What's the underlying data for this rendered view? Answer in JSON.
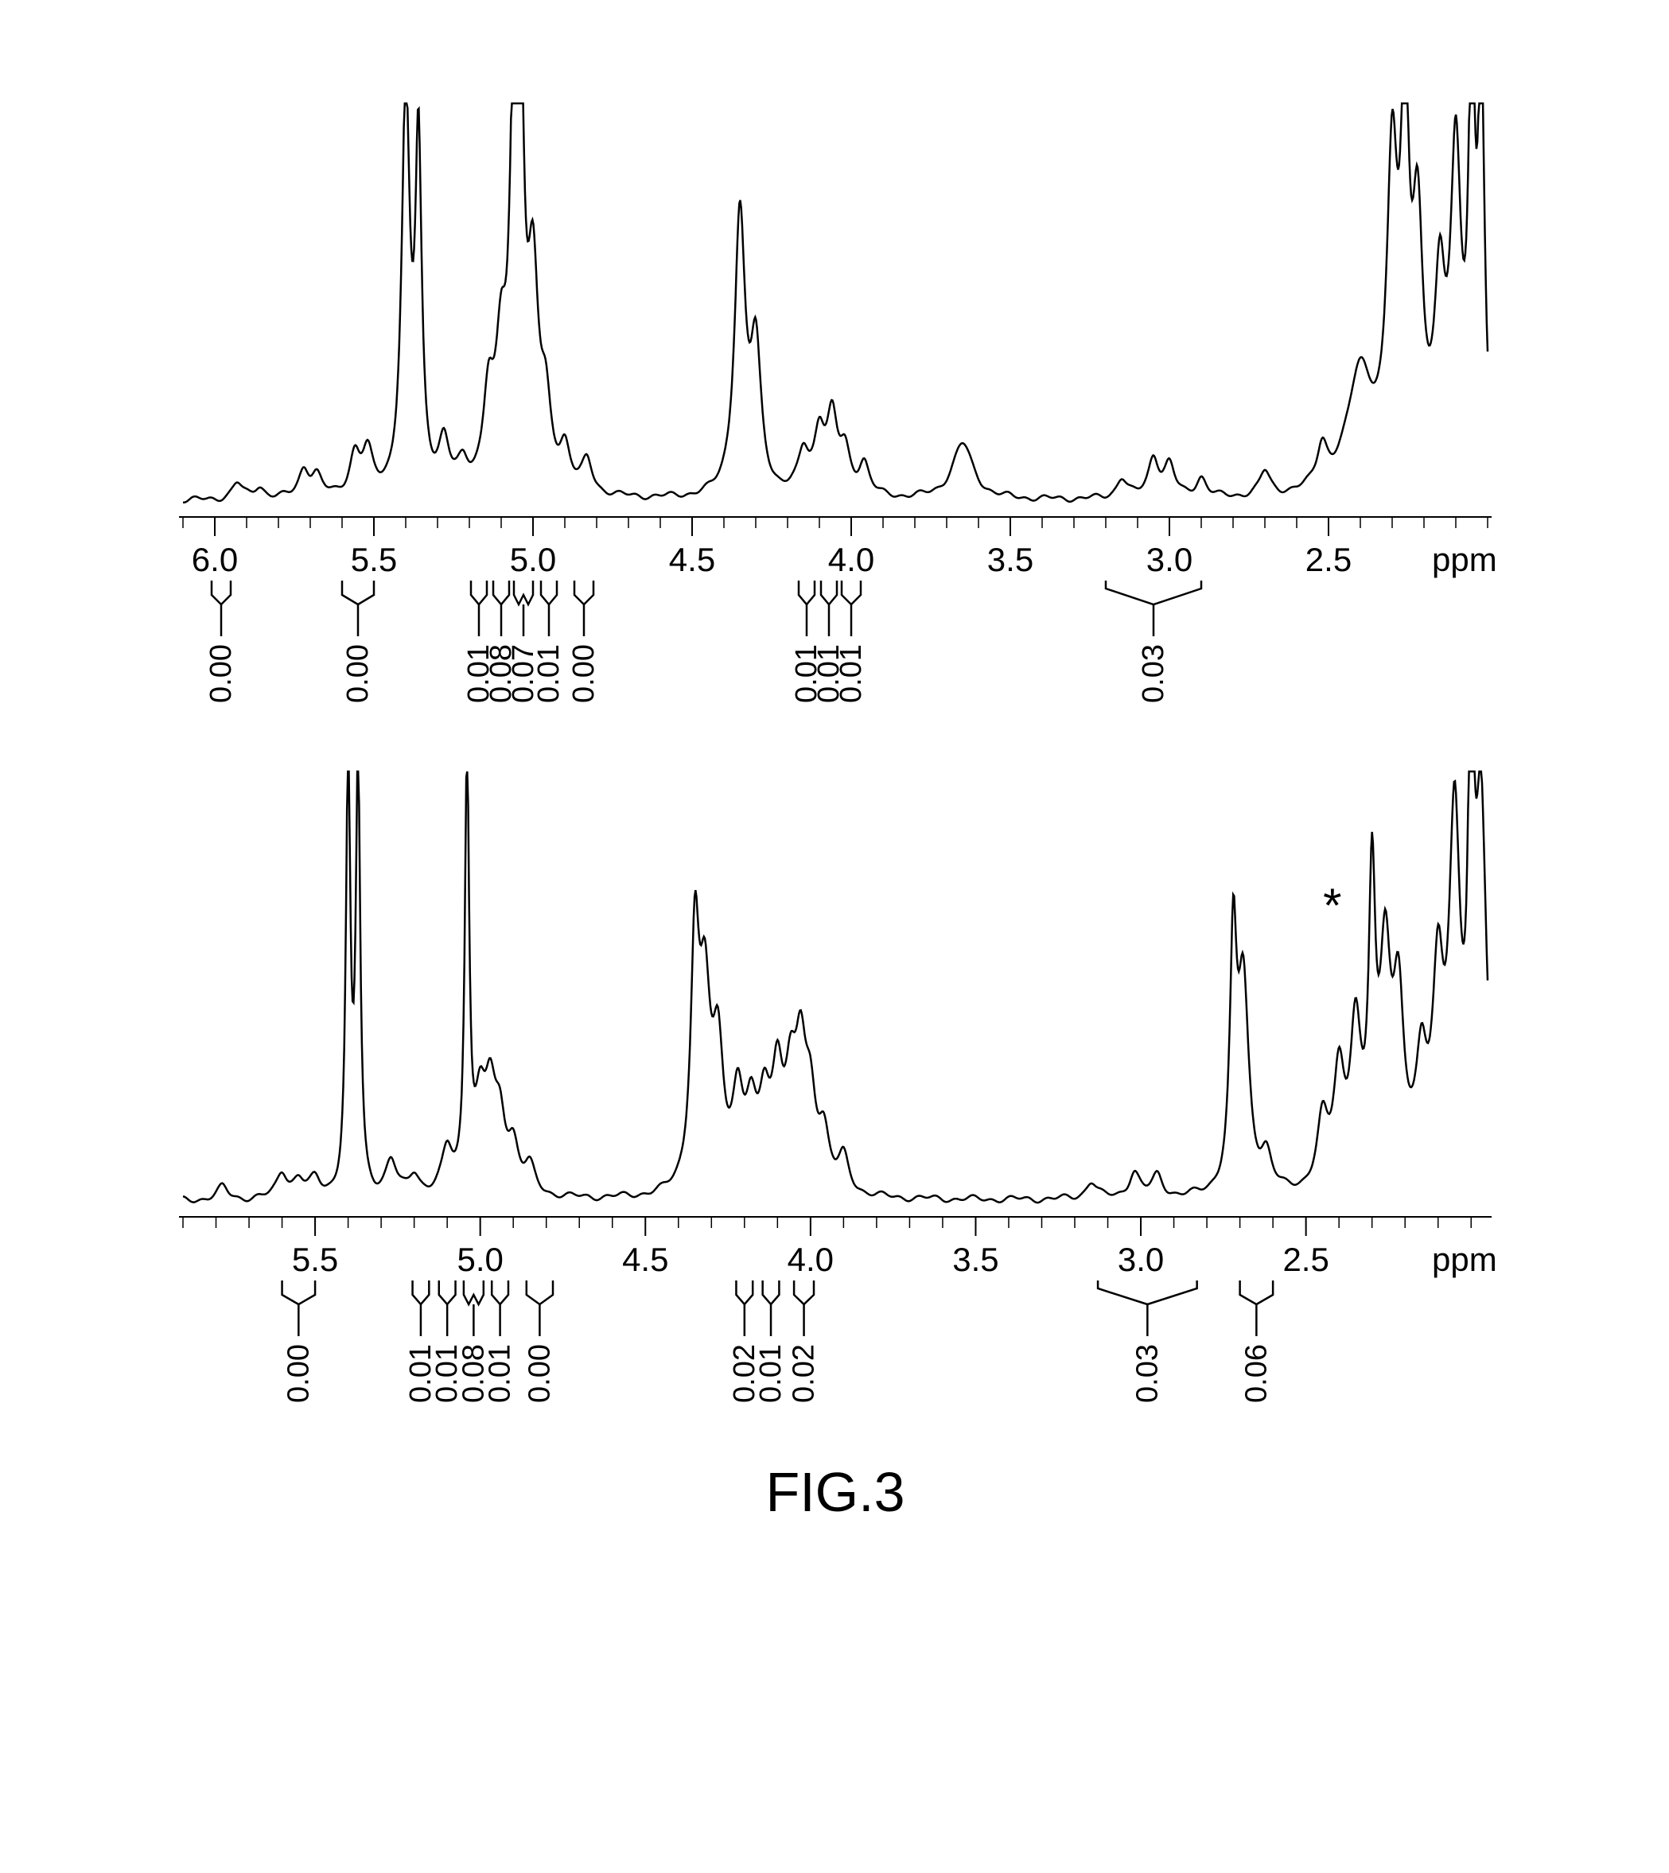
{
  "figure_label": "FIG.3",
  "background_color": "#ffffff",
  "line_color": "#000000",
  "axis_fontsize": 42,
  "integral_fontsize": 38,
  "caption_fontsize": 70,
  "panel1": {
    "xlim": [
      6.1,
      2.0
    ],
    "spectrum_height": 500,
    "axis_ticks_major": [
      6.0,
      5.5,
      5.0,
      4.5,
      4.0,
      3.5,
      3.0,
      2.5
    ],
    "axis_labels": [
      "6.0",
      "5.5",
      "5.0",
      "4.5",
      "4.0",
      "3.5",
      "3.0",
      "2.5"
    ],
    "ppm_label": "ppm",
    "minor_tick_interval": 0.1,
    "peaks": [
      {
        "x": 5.93,
        "h": 0.04
      },
      {
        "x": 5.86,
        "h": 0.03
      },
      {
        "x": 5.72,
        "h": 0.07
      },
      {
        "x": 5.68,
        "h": 0.05
      },
      {
        "x": 5.56,
        "h": 0.1
      },
      {
        "x": 5.52,
        "h": 0.1
      },
      {
        "x": 5.4,
        "h": 1.0,
        "w": 0.015
      },
      {
        "x": 5.36,
        "h": 0.85,
        "w": 0.012
      },
      {
        "x": 5.28,
        "h": 0.12
      },
      {
        "x": 5.22,
        "h": 0.06
      },
      {
        "x": 5.14,
        "h": 0.22
      },
      {
        "x": 5.1,
        "h": 0.3
      },
      {
        "x": 5.06,
        "h": 0.9,
        "w": 0.015
      },
      {
        "x": 5.04,
        "h": 1.0,
        "w": 0.012
      },
      {
        "x": 5.0,
        "h": 0.5
      },
      {
        "x": 4.96,
        "h": 0.18
      },
      {
        "x": 4.9,
        "h": 0.1
      },
      {
        "x": 4.83,
        "h": 0.08
      },
      {
        "x": 4.35,
        "h": 0.7,
        "w": 0.02
      },
      {
        "x": 4.3,
        "h": 0.35
      },
      {
        "x": 4.15,
        "h": 0.1
      },
      {
        "x": 4.1,
        "h": 0.15
      },
      {
        "x": 4.06,
        "h": 0.18
      },
      {
        "x": 4.02,
        "h": 0.1
      },
      {
        "x": 3.96,
        "h": 0.08
      },
      {
        "x": 3.65,
        "h": 0.14,
        "w": 0.04
      },
      {
        "x": 3.15,
        "h": 0.05
      },
      {
        "x": 3.05,
        "h": 0.1
      },
      {
        "x": 3.0,
        "h": 0.08
      },
      {
        "x": 2.9,
        "h": 0.05
      },
      {
        "x": 2.7,
        "h": 0.06
      },
      {
        "x": 2.52,
        "h": 0.1
      },
      {
        "x": 2.4,
        "h": 0.3,
        "w": 0.05
      },
      {
        "x": 2.3,
        "h": 0.75,
        "w": 0.02
      },
      {
        "x": 2.26,
        "h": 0.9,
        "w": 0.015
      },
      {
        "x": 2.22,
        "h": 0.6
      },
      {
        "x": 2.15,
        "h": 0.45
      },
      {
        "x": 2.1,
        "h": 0.8
      },
      {
        "x": 2.05,
        "h": 1.0,
        "w": 0.012
      },
      {
        "x": 2.02,
        "h": 1.0,
        "w": 0.012
      }
    ],
    "integrals": [
      {
        "x": 5.98,
        "value": "0.00",
        "width": 0.06
      },
      {
        "x": 5.55,
        "value": "0.00",
        "width": 0.1
      },
      {
        "x": 5.17,
        "value": "0.01",
        "width": 0.05
      },
      {
        "x": 5.1,
        "value": "0.08",
        "width": 0.05
      },
      {
        "x": 5.03,
        "value": "0.07",
        "width": 0.06,
        "double": true
      },
      {
        "x": 4.95,
        "value": "0.01",
        "width": 0.05
      },
      {
        "x": 4.84,
        "value": "0.00",
        "width": 0.06
      },
      {
        "x": 4.14,
        "value": "0.01",
        "width": 0.05
      },
      {
        "x": 4.07,
        "value": "0.01",
        "width": 0.05
      },
      {
        "x": 4.0,
        "value": "0.01",
        "width": 0.06
      },
      {
        "x": 3.05,
        "value": "0.03",
        "width": 0.3,
        "wide": true
      }
    ]
  },
  "panel2": {
    "xlim": [
      5.9,
      1.95
    ],
    "spectrum_height": 540,
    "axis_ticks_major": [
      5.5,
      5.0,
      4.5,
      4.0,
      3.5,
      3.0,
      2.5
    ],
    "axis_labels": [
      "5.5",
      "5.0",
      "4.5",
      "4.0",
      "3.5",
      "3.0",
      "2.5"
    ],
    "ppm_label": "ppm",
    "minor_tick_interval": 0.1,
    "asterisk_x": 2.42,
    "peaks": [
      {
        "x": 5.78,
        "h": 0.03
      },
      {
        "x": 5.6,
        "h": 0.06
      },
      {
        "x": 5.55,
        "h": 0.04
      },
      {
        "x": 5.5,
        "h": 0.04
      },
      {
        "x": 5.4,
        "h": 1.0,
        "w": 0.008
      },
      {
        "x": 5.37,
        "h": 1.0,
        "w": 0.008
      },
      {
        "x": 5.27,
        "h": 0.08
      },
      {
        "x": 5.2,
        "h": 0.05
      },
      {
        "x": 5.1,
        "h": 0.1
      },
      {
        "x": 5.04,
        "h": 1.0,
        "w": 0.008
      },
      {
        "x": 5.0,
        "h": 0.18
      },
      {
        "x": 4.97,
        "h": 0.2
      },
      {
        "x": 4.94,
        "h": 0.15
      },
      {
        "x": 4.9,
        "h": 0.1
      },
      {
        "x": 4.85,
        "h": 0.06
      },
      {
        "x": 4.35,
        "h": 0.55,
        "w": 0.015
      },
      {
        "x": 4.32,
        "h": 0.42
      },
      {
        "x": 4.28,
        "h": 0.3
      },
      {
        "x": 4.22,
        "h": 0.2
      },
      {
        "x": 4.18,
        "h": 0.15
      },
      {
        "x": 4.14,
        "h": 0.18
      },
      {
        "x": 4.1,
        "h": 0.25
      },
      {
        "x": 4.06,
        "h": 0.2
      },
      {
        "x": 4.03,
        "h": 0.28
      },
      {
        "x": 4.0,
        "h": 0.18
      },
      {
        "x": 3.96,
        "h": 0.12
      },
      {
        "x": 3.9,
        "h": 0.08
      },
      {
        "x": 3.15,
        "h": 0.04
      },
      {
        "x": 3.02,
        "h": 0.06
      },
      {
        "x": 2.95,
        "h": 0.05
      },
      {
        "x": 2.72,
        "h": 0.55,
        "w": 0.012
      },
      {
        "x": 2.69,
        "h": 0.48
      },
      {
        "x": 2.62,
        "h": 0.08
      },
      {
        "x": 2.45,
        "h": 0.15
      },
      {
        "x": 2.4,
        "h": 0.25
      },
      {
        "x": 2.35,
        "h": 0.35
      },
      {
        "x": 2.3,
        "h": 0.65,
        "w": 0.012
      },
      {
        "x": 2.26,
        "h": 0.5
      },
      {
        "x": 2.22,
        "h": 0.4
      },
      {
        "x": 2.15,
        "h": 0.25
      },
      {
        "x": 2.1,
        "h": 0.45
      },
      {
        "x": 2.05,
        "h": 0.8
      },
      {
        "x": 2.0,
        "h": 1.0,
        "w": 0.01
      },
      {
        "x": 1.97,
        "h": 0.85
      }
    ],
    "integrals": [
      {
        "x": 5.55,
        "value": "0.00",
        "width": 0.1
      },
      {
        "x": 5.18,
        "value": "0.01",
        "width": 0.05
      },
      {
        "x": 5.1,
        "value": "0.01",
        "width": 0.05
      },
      {
        "x": 5.02,
        "value": "0.08",
        "width": 0.06,
        "double": true
      },
      {
        "x": 4.94,
        "value": "0.01",
        "width": 0.05
      },
      {
        "x": 4.82,
        "value": "0.00",
        "width": 0.08
      },
      {
        "x": 4.2,
        "value": "0.02",
        "width": 0.05
      },
      {
        "x": 4.12,
        "value": "0.01",
        "width": 0.05
      },
      {
        "x": 4.02,
        "value": "0.02",
        "width": 0.06
      },
      {
        "x": 2.98,
        "value": "0.03",
        "width": 0.3,
        "wide": true
      },
      {
        "x": 2.65,
        "value": "0.06",
        "width": 0.1
      }
    ]
  }
}
